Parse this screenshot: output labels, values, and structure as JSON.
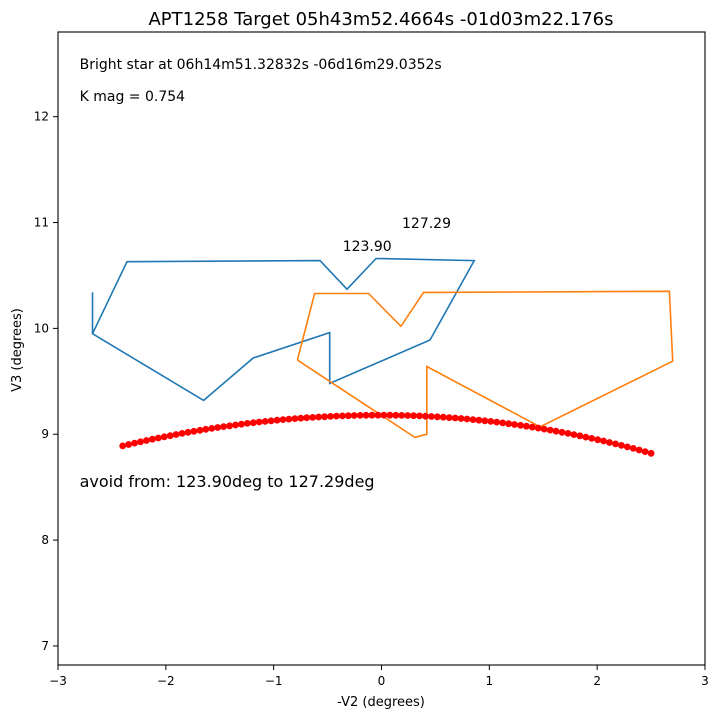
{
  "chart_data": {
    "type": "line",
    "title": "APT1258 Target 05h43m52.4664s -01d03m22.176s",
    "xlabel": "-V2 (degrees)",
    "ylabel": "V3 (degrees)",
    "xlim": [
      -3,
      3
    ],
    "ylim": [
      6.82,
      12.8
    ],
    "xticks": [
      -3,
      -2,
      -1,
      0,
      1,
      2,
      3
    ],
    "yticks": [
      7,
      8,
      9,
      10,
      11,
      12
    ],
    "grid": false,
    "annotations": [
      {
        "text": "Bright star at   06h14m51.32832s -06d16m29.0352s",
        "x": -2.8,
        "y": 12.45
      },
      {
        "text": "K mag = 0.754",
        "x": -2.8,
        "y": 12.15
      },
      {
        "text": "avoid from: 123.90deg to 127.29deg",
        "x": -2.8,
        "y": 8.5
      },
      {
        "text": "123.90",
        "x": -0.36,
        "y": 10.73
      },
      {
        "text": "127.29",
        "x": 0.19,
        "y": 10.95
      }
    ],
    "series": [
      {
        "color": "#1f77b4",
        "style": "line",
        "x": [
          -2.68,
          -2.36,
          -0.57,
          -0.32,
          -0.05,
          0.86,
          0.45,
          -0.48,
          -0.48,
          -1.19,
          -1.65,
          -2.68,
          -2.68
        ],
        "y": [
          9.95,
          10.63,
          10.64,
          10.37,
          10.66,
          10.64,
          9.89,
          9.48,
          9.96,
          9.72,
          9.32,
          9.95,
          10.34
        ]
      },
      {
        "color": "#ff7f0e",
        "style": "line",
        "x": [
          -0.78,
          -0.62,
          -0.12,
          0.18,
          0.39,
          2.67,
          2.7,
          1.47,
          0.42,
          0.42,
          0.31,
          -0.78
        ],
        "y": [
          9.7,
          10.33,
          10.33,
          10.02,
          10.34,
          10.35,
          9.69,
          9.07,
          9.64,
          9.0,
          8.97,
          9.7
        ]
      },
      {
        "color": "#ff0000",
        "style": "markers",
        "x_range": [
          -2.4,
          2.5
        ],
        "x_at_max": 0.0,
        "y_max": 9.18,
        "y_left_end": 8.89,
        "y_right_end": 8.82,
        "n_points": 90
      }
    ]
  }
}
